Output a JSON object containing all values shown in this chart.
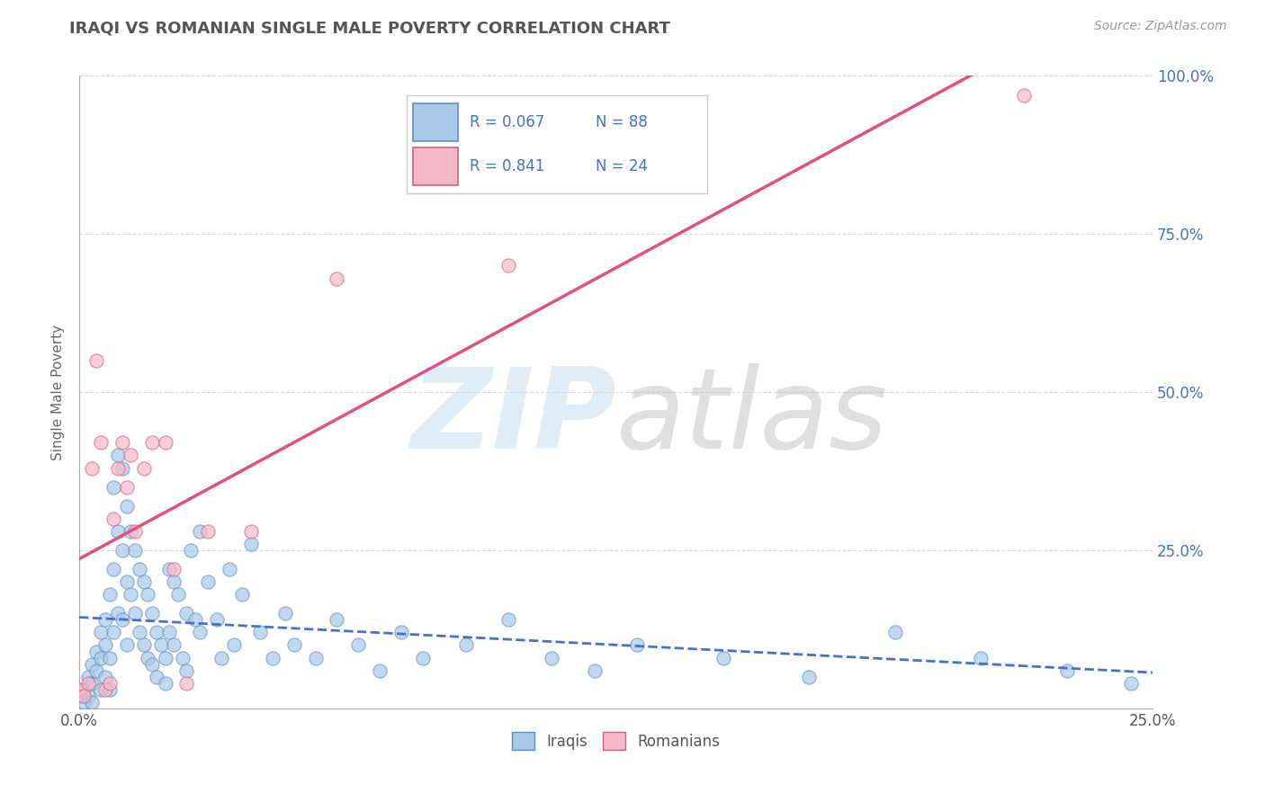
{
  "title": "IRAQI VS ROMANIAN SINGLE MALE POVERTY CORRELATION CHART",
  "source": "Source: ZipAtlas.com",
  "ylabel": "Single Male Poverty",
  "xlim": [
    0.0,
    0.25
  ],
  "ylim": [
    0.0,
    1.0
  ],
  "xticks": [
    0.0,
    0.25
  ],
  "yticks": [
    0.25,
    0.5,
    0.75,
    1.0
  ],
  "xtick_labels": [
    "0.0%",
    "25.0%"
  ],
  "ytick_labels": [
    "25.0%",
    "50.0%",
    "75.0%",
    "100.0%"
  ],
  "iraqi_color": "#a8c8e8",
  "romanian_color": "#f4b8c8",
  "iraqi_edge_color": "#6090c0",
  "romanian_edge_color": "#d06080",
  "iraqi_line_color": "#4472c4",
  "romanian_line_color": "#e05080",
  "R_iraqi": 0.067,
  "N_iraqi": 88,
  "R_romanian": 0.841,
  "N_romanian": 24,
  "legend_color": "#4472c4",
  "watermark_zip_color": "#cce0f0",
  "watermark_atlas_color": "#c0c0c0",
  "background_color": "#ffffff",
  "grid_color": "#cccccc",
  "title_color": "#555555",
  "ytick_color": "#4472c4",
  "xtick_color": "#555555",
  "iraqi_scatter": [
    [
      0.0,
      0.02
    ],
    [
      0.001,
      0.01
    ],
    [
      0.001,
      0.03
    ],
    [
      0.002,
      0.05
    ],
    [
      0.002,
      0.02
    ],
    [
      0.003,
      0.07
    ],
    [
      0.003,
      0.04
    ],
    [
      0.003,
      0.01
    ],
    [
      0.004,
      0.09
    ],
    [
      0.004,
      0.06
    ],
    [
      0.005,
      0.12
    ],
    [
      0.005,
      0.08
    ],
    [
      0.005,
      0.03
    ],
    [
      0.006,
      0.14
    ],
    [
      0.006,
      0.1
    ],
    [
      0.006,
      0.05
    ],
    [
      0.007,
      0.18
    ],
    [
      0.007,
      0.08
    ],
    [
      0.007,
      0.03
    ],
    [
      0.008,
      0.35
    ],
    [
      0.008,
      0.22
    ],
    [
      0.008,
      0.12
    ],
    [
      0.009,
      0.4
    ],
    [
      0.009,
      0.28
    ],
    [
      0.009,
      0.15
    ],
    [
      0.01,
      0.38
    ],
    [
      0.01,
      0.25
    ],
    [
      0.01,
      0.14
    ],
    [
      0.011,
      0.32
    ],
    [
      0.011,
      0.2
    ],
    [
      0.011,
      0.1
    ],
    [
      0.012,
      0.28
    ],
    [
      0.012,
      0.18
    ],
    [
      0.013,
      0.25
    ],
    [
      0.013,
      0.15
    ],
    [
      0.014,
      0.22
    ],
    [
      0.014,
      0.12
    ],
    [
      0.015,
      0.2
    ],
    [
      0.015,
      0.1
    ],
    [
      0.016,
      0.18
    ],
    [
      0.016,
      0.08
    ],
    [
      0.017,
      0.15
    ],
    [
      0.017,
      0.07
    ],
    [
      0.018,
      0.12
    ],
    [
      0.018,
      0.05
    ],
    [
      0.019,
      0.1
    ],
    [
      0.02,
      0.08
    ],
    [
      0.02,
      0.04
    ],
    [
      0.021,
      0.22
    ],
    [
      0.021,
      0.12
    ],
    [
      0.022,
      0.2
    ],
    [
      0.022,
      0.1
    ],
    [
      0.023,
      0.18
    ],
    [
      0.024,
      0.08
    ],
    [
      0.025,
      0.15
    ],
    [
      0.025,
      0.06
    ],
    [
      0.026,
      0.25
    ],
    [
      0.027,
      0.14
    ],
    [
      0.028,
      0.28
    ],
    [
      0.028,
      0.12
    ],
    [
      0.03,
      0.2
    ],
    [
      0.032,
      0.14
    ],
    [
      0.033,
      0.08
    ],
    [
      0.035,
      0.22
    ],
    [
      0.036,
      0.1
    ],
    [
      0.038,
      0.18
    ],
    [
      0.04,
      0.26
    ],
    [
      0.042,
      0.12
    ],
    [
      0.045,
      0.08
    ],
    [
      0.048,
      0.15
    ],
    [
      0.05,
      0.1
    ],
    [
      0.055,
      0.08
    ],
    [
      0.06,
      0.14
    ],
    [
      0.065,
      0.1
    ],
    [
      0.07,
      0.06
    ],
    [
      0.075,
      0.12
    ],
    [
      0.08,
      0.08
    ],
    [
      0.09,
      0.1
    ],
    [
      0.1,
      0.14
    ],
    [
      0.11,
      0.08
    ],
    [
      0.12,
      0.06
    ],
    [
      0.13,
      0.1
    ],
    [
      0.15,
      0.08
    ],
    [
      0.17,
      0.05
    ],
    [
      0.19,
      0.12
    ],
    [
      0.21,
      0.08
    ],
    [
      0.23,
      0.06
    ],
    [
      0.245,
      0.04
    ]
  ],
  "romanian_scatter": [
    [
      0.0,
      0.03
    ],
    [
      0.001,
      0.02
    ],
    [
      0.002,
      0.04
    ],
    [
      0.003,
      0.38
    ],
    [
      0.004,
      0.55
    ],
    [
      0.005,
      0.42
    ],
    [
      0.006,
      0.03
    ],
    [
      0.007,
      0.04
    ],
    [
      0.008,
      0.3
    ],
    [
      0.009,
      0.38
    ],
    [
      0.01,
      0.42
    ],
    [
      0.011,
      0.35
    ],
    [
      0.012,
      0.4
    ],
    [
      0.013,
      0.28
    ],
    [
      0.015,
      0.38
    ],
    [
      0.017,
      0.42
    ],
    [
      0.02,
      0.42
    ],
    [
      0.022,
      0.22
    ],
    [
      0.025,
      0.04
    ],
    [
      0.03,
      0.28
    ],
    [
      0.04,
      0.28
    ],
    [
      0.06,
      0.68
    ],
    [
      0.1,
      0.7
    ],
    [
      0.22,
      0.97
    ]
  ]
}
